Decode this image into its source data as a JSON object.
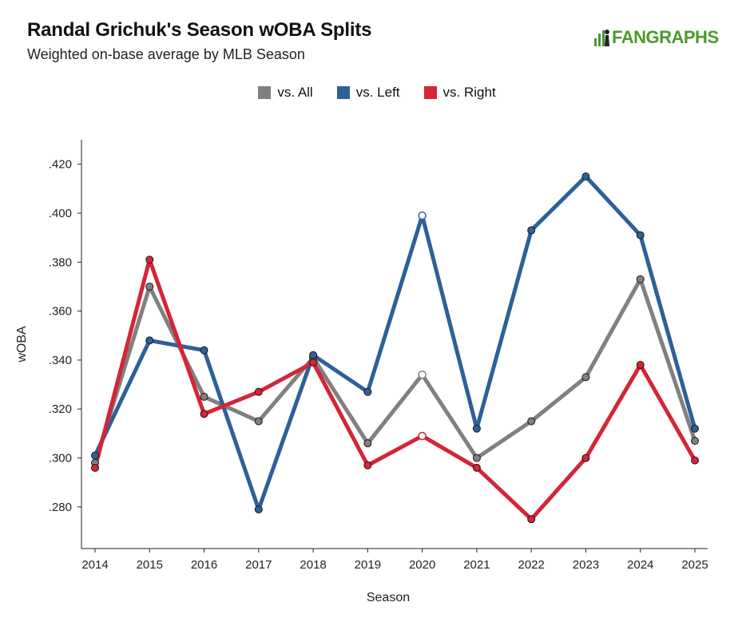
{
  "header": {
    "title": "Randal Grichuk's Season wOBA Splits",
    "subtitle": "Weighted on-base average by MLB Season"
  },
  "logo": {
    "text": "FANGRAPHS",
    "icon": "fangraphs-logo-icon",
    "color": "#4a9a2f"
  },
  "chart_data": {
    "type": "line",
    "title": "Randal Grichuk's Season wOBA Splits",
    "subtitle": "Weighted on-base average by MLB Season",
    "xlabel": "Season",
    "ylabel": "wOBA",
    "categories": [
      "2014",
      "2015",
      "2016",
      "2017",
      "2018",
      "2019",
      "2020",
      "2021",
      "2022",
      "2023",
      "2024",
      "2025"
    ],
    "yticks": [
      ".280",
      ".300",
      ".320",
      ".340",
      ".360",
      ".380",
      ".400",
      ".420"
    ],
    "ylim": [
      0.263,
      0.43
    ],
    "grid": false,
    "legend_position": "top-center",
    "series": [
      {
        "name": "vs. All",
        "color": "#808080",
        "values": [
          0.298,
          0.37,
          0.325,
          0.315,
          0.341,
          0.306,
          0.334,
          0.3,
          0.315,
          0.333,
          0.373,
          0.307
        ]
      },
      {
        "name": "vs. Left",
        "color": "#2e6098",
        "values": [
          0.301,
          0.348,
          0.344,
          0.279,
          0.342,
          0.327,
          0.399,
          0.312,
          0.393,
          0.415,
          0.391,
          0.312
        ]
      },
      {
        "name": "vs. Right",
        "color": "#d42536",
        "values": [
          0.296,
          0.381,
          0.318,
          0.327,
          0.339,
          0.297,
          0.309,
          0.296,
          0.275,
          0.3,
          0.338,
          0.299
        ]
      }
    ],
    "hollow_markers_category": "2020"
  }
}
